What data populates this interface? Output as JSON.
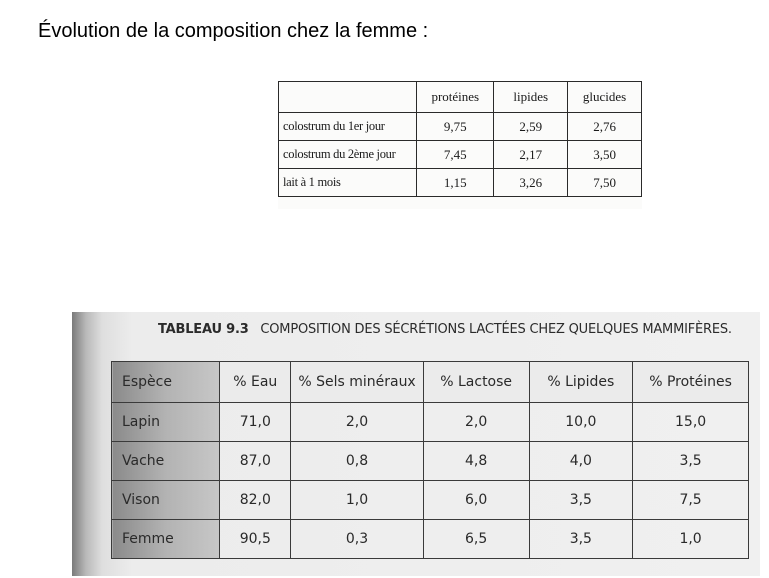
{
  "heading": "Évolution de la composition chez la femme :",
  "table1": {
    "columns": [
      "",
      "protéines",
      "lipides",
      "glucides"
    ],
    "rows": [
      {
        "label": "colostrum du 1er jour",
        "values": [
          "9,75",
          "2,59",
          "2,76"
        ]
      },
      {
        "label": "colostrum du 2ème jour",
        "values": [
          "7,45",
          "2,17",
          "3,50"
        ]
      },
      {
        "label": "lait à 1 mois",
        "values": [
          "1,15",
          "3,26",
          "7,50"
        ]
      }
    ]
  },
  "table2": {
    "caption_number": "TABLEAU 9.3",
    "caption_title": "COMPOSITION DES SÉCRÉTIONS LACTÉES CHEZ QUELQUES MAMMIFÈRES.",
    "columns": [
      "Espèce",
      "% Eau",
      "% Sels minéraux",
      "% Lactose",
      "% Lipides",
      "% Protéines"
    ],
    "rows": [
      {
        "espece": "Lapin",
        "values": [
          "71,0",
          "2,0",
          "2,0",
          "10,0",
          "15,0"
        ]
      },
      {
        "espece": "Vache",
        "values": [
          "87,0",
          "0,8",
          "4,8",
          "4,0",
          "3,5"
        ]
      },
      {
        "espece": "Vison",
        "values": [
          "82,0",
          "1,0",
          "6,0",
          "3,5",
          "7,5"
        ]
      },
      {
        "espece": "Femme",
        "values": [
          "90,5",
          "0,3",
          "6,5",
          "3,5",
          "1,0"
        ]
      }
    ]
  }
}
